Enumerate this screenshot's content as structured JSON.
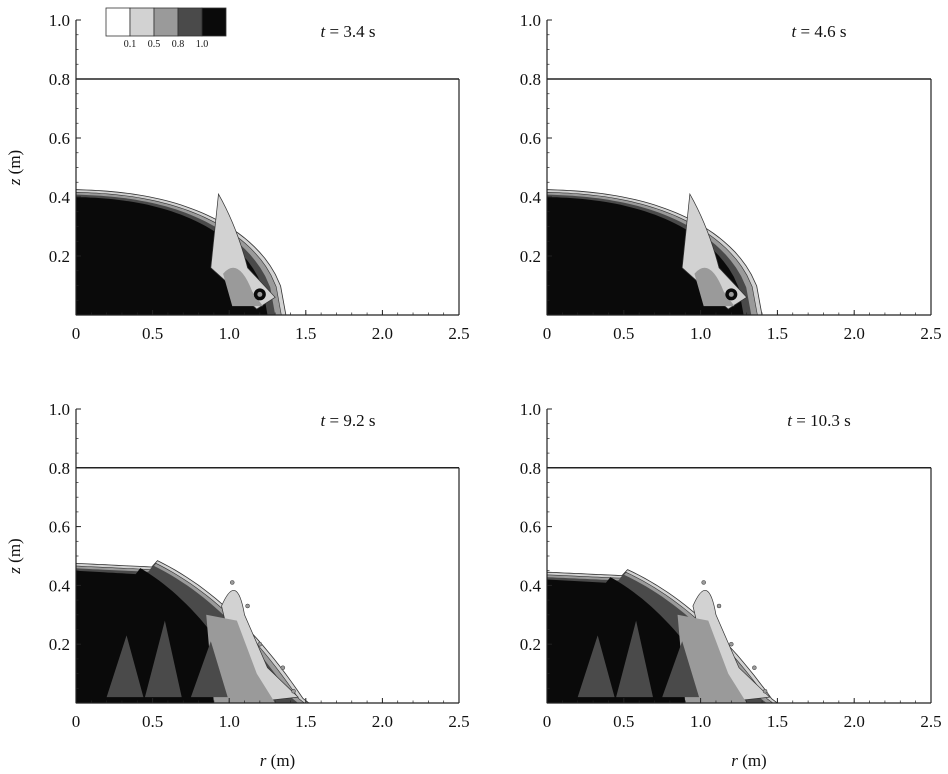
{
  "figure": {
    "panels": [
      {
        "time_label": "t = 3.4 s",
        "x_label": "",
        "y_label": "z (m)"
      },
      {
        "time_label": "t = 4.6 s",
        "x_label": "",
        "y_label": ""
      },
      {
        "time_label": "t = 9.2 s",
        "x_label": "r (m)",
        "y_label": "z (m)"
      },
      {
        "time_label": "t = 10.3 s",
        "x_label": "r (m)",
        "y_label": ""
      }
    ],
    "colorbar": {
      "labels": [
        "0.1",
        "0.5",
        "0.8",
        "1.0"
      ],
      "colors": [
        "#ffffff",
        "#d2d2d2",
        "#9a9a9a",
        "#4a4a4a",
        "#0a0a0a"
      ]
    }
  },
  "chart_data": [
    {
      "type": "heatmap",
      "time": "t = 3.4 s",
      "xlim": [
        0,
        2.5
      ],
      "ylim": [
        0,
        1.0
      ],
      "xticks": [
        "0",
        "0.5",
        "1.0",
        "1.5",
        "2.0",
        "2.5"
      ],
      "yticks": [
        "0.2",
        "0.4",
        "0.6",
        "0.8",
        "1.0"
      ],
      "ylabel": "z (m)",
      "domain_top_z": 0.8,
      "front_r": 1.37,
      "surface_height_at_axis": 0.42
    },
    {
      "type": "heatmap",
      "time": "t = 4.6 s",
      "xlim": [
        0,
        2.5
      ],
      "ylim": [
        0,
        1.0
      ],
      "xticks": [
        "0",
        "0.5",
        "1.0",
        "1.5",
        "2.0",
        "2.5"
      ],
      "yticks": [
        "0.2",
        "0.4",
        "0.6",
        "0.8",
        "1.0"
      ],
      "domain_top_z": 0.8,
      "front_r": 1.4,
      "surface_height_at_axis": 0.42
    },
    {
      "type": "heatmap",
      "time": "t = 9.2 s",
      "xlim": [
        0,
        2.5
      ],
      "ylim": [
        0,
        1.0
      ],
      "xticks": [
        "0",
        "0.5",
        "1.0",
        "1.5",
        "2.0",
        "2.5"
      ],
      "yticks": [
        "0.2",
        "0.4",
        "0.6",
        "0.8",
        "1.0"
      ],
      "xlabel": "r (m)",
      "ylabel": "z (m)",
      "domain_top_z": 0.8,
      "front_r": 1.52,
      "surface_height_at_axis": 0.47
    },
    {
      "type": "heatmap",
      "time": "t = 10.3 s",
      "xlim": [
        0,
        2.5
      ],
      "ylim": [
        0,
        1.0
      ],
      "xticks": [
        "0",
        "0.5",
        "1.0",
        "1.5",
        "2.0",
        "2.5"
      ],
      "yticks": [
        "0.2",
        "0.4",
        "0.6",
        "0.8",
        "1.0"
      ],
      "xlabel": "r (m)",
      "domain_top_z": 0.8,
      "front_r": 1.5,
      "surface_height_at_axis": 0.44
    }
  ]
}
